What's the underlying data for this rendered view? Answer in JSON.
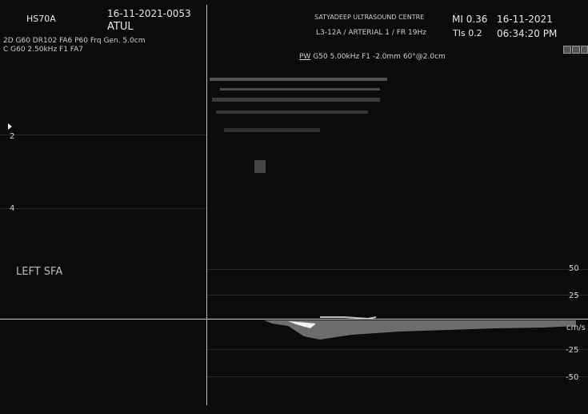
{
  "header": {
    "model": "HS70A",
    "exam_id": "16-11-2021-0053",
    "patient_name": "ATUL",
    "line1": "2D G60 DR102 FA6 P60 Frq Gen. 5.0cm",
    "line2": "C G60 2.50kHz F1 FA7",
    "centre": "SATYADEEP ULTRASOUND CENTRE",
    "probe": "L3-12A / ARTERIAL 1 / FR 19Hz",
    "mi": "MI 0.36",
    "tis": "TIs 0.2",
    "date": "16-11-2021",
    "time": "06:34:20 PM"
  },
  "pw": {
    "label": "PW",
    "params": "G50 5.00kHz F1 -2.0mm 60°@2.0cm"
  },
  "bmode": {
    "depth_marks": [
      "2",
      "4"
    ],
    "annotation": "LEFT SFA"
  },
  "spectral": {
    "unit": "cm/s",
    "scale_labels": [
      "50",
      "25",
      "-25",
      "-50"
    ]
  },
  "colors": {
    "background": "#0b0b0b",
    "text": "#e8e8e8",
    "baseline": "#cfcfcf"
  }
}
